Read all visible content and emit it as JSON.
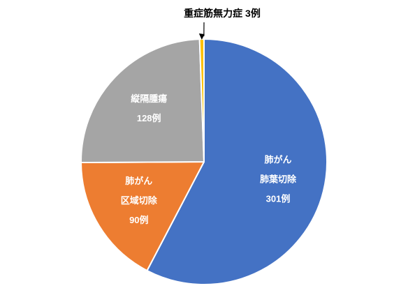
{
  "chart_data": {
    "type": "pie",
    "title": "",
    "start_angle_deg": 0,
    "direction": "clockwise",
    "series": [
      {
        "category_lines": [
          "肺がん",
          "肺葉切除"
        ],
        "count_label": "301例",
        "value": 301,
        "color": "#4472C4"
      },
      {
        "category_lines": [
          "肺がん",
          "区域切除"
        ],
        "count_label": "90例",
        "value": 90,
        "color": "#ED7D31"
      },
      {
        "category_lines": [
          "縦隔腫瘍"
        ],
        "count_label": "128例",
        "value": 128,
        "color": "#A5A5A5"
      },
      {
        "category_lines": [
          "重症筋無力症"
        ],
        "count_label": "3例",
        "value": 3,
        "color": "#FFC000",
        "callout": true
      }
    ]
  }
}
